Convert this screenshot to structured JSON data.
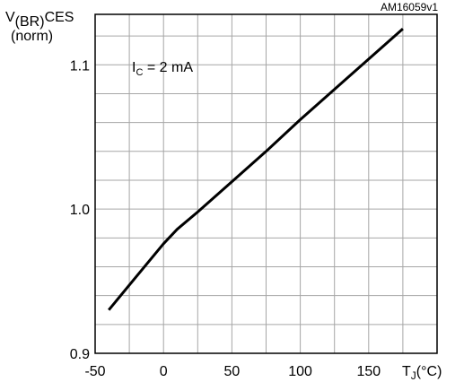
{
  "figure_id": "AM16059v1",
  "annotation": {
    "main": "I",
    "sub": "C",
    "rest": " = 2 mA"
  },
  "ylabel": {
    "line1_main": "V",
    "line1_sub": "(BR)",
    "line1_rest": "CES",
    "line2": "(norm)"
  },
  "xlabel": {
    "main": "T",
    "sub": "J",
    "rest": "(°C)"
  },
  "chart_data": {
    "type": "line",
    "title": "",
    "xlim": [
      -50,
      200
    ],
    "ylim": [
      0.9,
      1.135
    ],
    "x_ticks": [
      -50,
      0,
      50,
      100,
      150
    ],
    "x_tick_labels": [
      "-50",
      "0",
      "50",
      "100",
      "150"
    ],
    "y_ticks": [
      0.9,
      1.0,
      1.1
    ],
    "y_tick_labels": [
      "0.9",
      "1.0",
      "1.1"
    ],
    "x_minor_step": 25,
    "y_minor_step": 0.02,
    "grid": true,
    "series": [
      {
        "x": [
          -40,
          -20,
          0,
          10,
          25,
          50,
          75,
          100,
          125,
          150,
          175
        ],
        "y": [
          0.93,
          0.953,
          0.976,
          0.986,
          0.998,
          1.019,
          1.04,
          1.062,
          1.083,
          1.104,
          1.125
        ]
      }
    ]
  }
}
